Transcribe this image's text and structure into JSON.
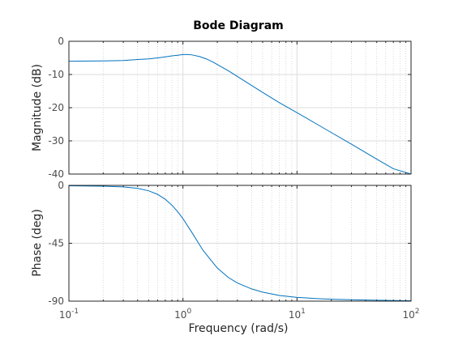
{
  "chart_data": {
    "type": "line",
    "title": "Bode Diagram",
    "xlabel": "Frequency  (rad/s)",
    "xscale": "log",
    "xlim": [
      0.1,
      100
    ],
    "x_tick_labels": [
      {
        "value": 0.1,
        "base": "10",
        "exp": "-1"
      },
      {
        "value": 1,
        "base": "10",
        "exp": "0"
      },
      {
        "value": 10,
        "base": "10",
        "exp": "1"
      },
      {
        "value": 100,
        "base": "10",
        "exp": "2"
      }
    ],
    "grid": true,
    "line_color": "#0072bd",
    "panels": [
      {
        "id": "magnitude",
        "ylabel": "Magnitude (dB)",
        "ylim": [
          -40,
          0
        ],
        "yticks": [
          0,
          -10,
          -20,
          -30,
          -40
        ],
        "ytick_labels": [
          "0",
          "-10",
          "-20",
          "-30",
          "-40"
        ],
        "series": [
          {
            "x": [
              0.1,
              0.2,
              0.3,
              0.4,
              0.5,
              0.6,
              0.7,
              0.8,
              0.9,
              1.0,
              1.1,
              1.2,
              1.4,
              1.6,
              1.8,
              2.0,
              2.5,
              3.0,
              4.0,
              5.0,
              7.0,
              10,
              15,
              20,
              30,
              50,
              70,
              100
            ],
            "y": [
              -6.0,
              -5.9,
              -5.8,
              -5.5,
              -5.3,
              -5.0,
              -4.7,
              -4.4,
              -4.2,
              -4.0,
              -4.0,
              -4.1,
              -4.6,
              -5.3,
              -6.1,
              -7.0,
              -8.9,
              -10.6,
              -13.3,
              -15.4,
              -18.5,
              -21.5,
              -25.0,
              -27.5,
              -31.0,
              -35.5,
              -38.4,
              -40.0
            ]
          }
        ]
      },
      {
        "id": "phase",
        "ylabel": "Phase (deg)",
        "ylim": [
          -90,
          0
        ],
        "yticks": [
          0,
          -45,
          -90
        ],
        "ytick_labels": [
          "0",
          "-45",
          "-90"
        ],
        "series": [
          {
            "x": [
              0.1,
              0.2,
              0.3,
              0.4,
              0.5,
              0.6,
              0.7,
              0.8,
              0.9,
              1.0,
              1.2,
              1.5,
              2.0,
              2.5,
              3.0,
              4.0,
              5.0,
              7.0,
              10,
              15,
              20,
              30,
              50,
              100
            ],
            "y": [
              -0.3,
              -0.6,
              -1.2,
              -2.3,
              -4.2,
              -7.0,
              -10.8,
              -15.4,
              -20.5,
              -25.9,
              -36.7,
              -50.5,
              -64.2,
              -71.6,
              -75.9,
              -80.5,
              -83.0,
              -85.6,
              -87.1,
              -88.0,
              -88.5,
              -88.9,
              -89.3,
              -89.7
            ]
          }
        ]
      }
    ]
  }
}
